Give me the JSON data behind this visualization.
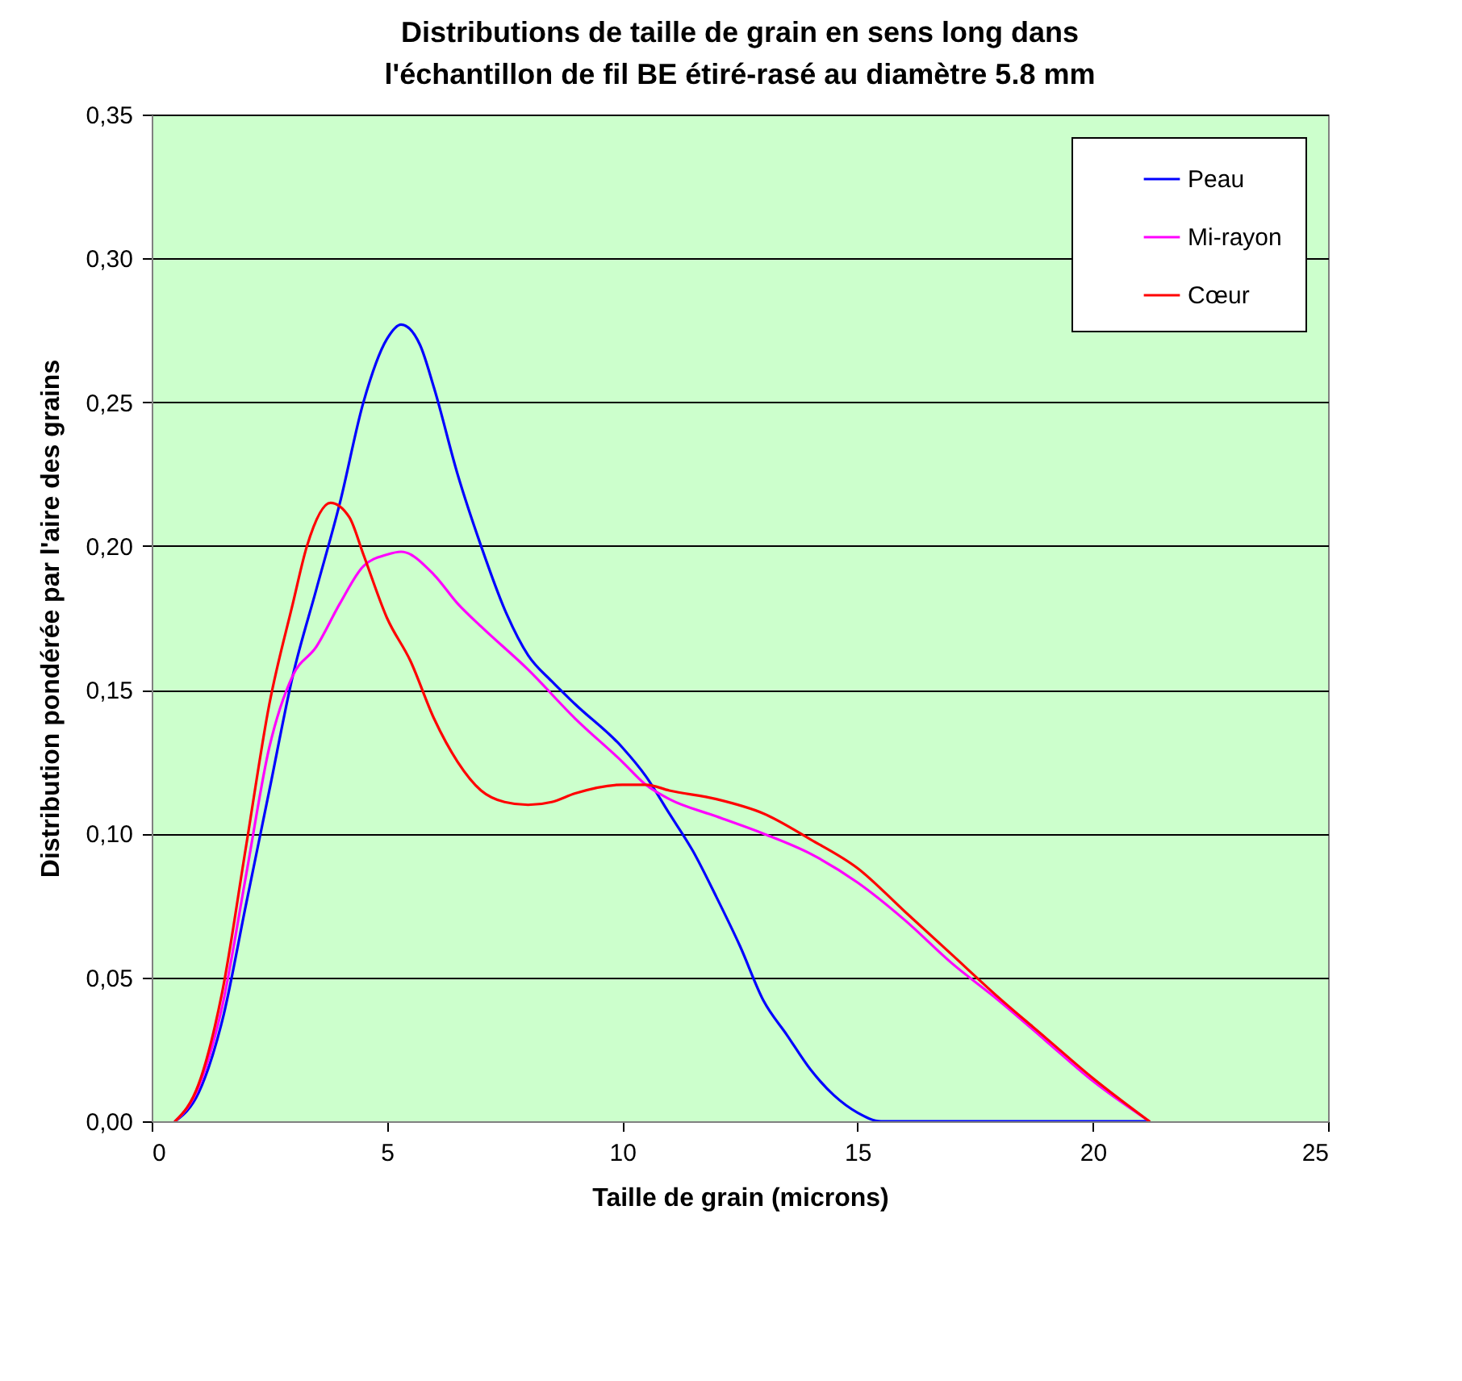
{
  "chart_data": {
    "type": "line",
    "title": "Distributions de taille de grain en sens long dans\nl'échantillon de fil BE étiré-rasé au diamètre 5.8 mm",
    "xlabel": "Taille de grain (microns)",
    "ylabel": "Distribution pondérée par l'aire des grains",
    "xlim": [
      0,
      25
    ],
    "xticks": [
      0,
      5,
      10,
      15,
      20,
      25
    ],
    "ylim": [
      0,
      0.35
    ],
    "yticks": [
      {
        "value": 0,
        "label": "0,00"
      },
      {
        "value": 0.05,
        "label": "0,05"
      },
      {
        "value": 0.1,
        "label": "0,10"
      },
      {
        "value": 0.15,
        "label": "0,15"
      },
      {
        "value": 0.2,
        "label": "0,20"
      },
      {
        "value": 0.25,
        "label": "0,25"
      },
      {
        "value": 0.3,
        "label": "0,30"
      },
      {
        "value": 0.35,
        "label": "0,35"
      }
    ],
    "grid": "y",
    "legend": "top right",
    "series": [
      {
        "name": "Peau",
        "color": "#0000ff",
        "x": [
          0.5,
          1,
          1.5,
          2,
          2.5,
          3,
          3.5,
          4,
          4.5,
          5,
          5.3,
          5.7,
          6,
          6.5,
          7,
          7.5,
          8,
          8.5,
          9,
          10,
          10.5,
          11,
          11.5,
          12,
          12.5,
          13,
          13.5,
          14,
          14.5,
          15,
          15.5,
          18,
          21.2
        ],
        "values": [
          0,
          0.01,
          0.035,
          0.075,
          0.115,
          0.155,
          0.185,
          0.215,
          0.25,
          0.272,
          0.277,
          0.27,
          0.255,
          0.225,
          0.2,
          0.178,
          0.162,
          0.153,
          0.145,
          0.13,
          0.12,
          0.107,
          0.094,
          0.078,
          0.061,
          0.042,
          0.03,
          0.018,
          0.009,
          0.003,
          0,
          0,
          0
        ]
      },
      {
        "name": "Mi-rayon",
        "color": "#ff00ff",
        "x": [
          0.5,
          1,
          1.5,
          2,
          2.5,
          3,
          3.5,
          4,
          4.5,
          5,
          5.3,
          6,
          6.5,
          7,
          8,
          9,
          10,
          10.5,
          11,
          12,
          13,
          14,
          15,
          16,
          17,
          18,
          19,
          20,
          21.2
        ],
        "values": [
          0,
          0.012,
          0.04,
          0.085,
          0.13,
          0.155,
          0.165,
          0.18,
          0.193,
          0.197,
          0.198,
          0.19,
          0.18,
          0.172,
          0.157,
          0.14,
          0.125,
          0.117,
          0.112,
          0.106,
          0.1,
          0.093,
          0.083,
          0.07,
          0.055,
          0.042,
          0.028,
          0.014,
          0
        ]
      },
      {
        "name": "Cœur",
        "color": "#ff0000",
        "x": [
          0.5,
          1,
          1.5,
          2,
          2.5,
          3,
          3.3,
          3.8,
          4.2,
          4.5,
          5,
          5.5,
          6,
          6.5,
          7,
          7.5,
          8,
          8.5,
          9,
          10,
          10.5,
          11,
          12,
          13,
          14,
          15,
          16,
          17,
          18,
          19,
          20,
          21.2
        ],
        "values": [
          0,
          0.013,
          0.045,
          0.095,
          0.145,
          0.18,
          0.2,
          0.215,
          0.21,
          0.197,
          0.175,
          0.16,
          0.14,
          0.125,
          0.115,
          0.111,
          0.11,
          0.111,
          0.114,
          0.117,
          0.117,
          0.115,
          0.112,
          0.107,
          0.098,
          0.088,
          0.073,
          0.058,
          0.043,
          0.029,
          0.015,
          0
        ]
      }
    ]
  }
}
